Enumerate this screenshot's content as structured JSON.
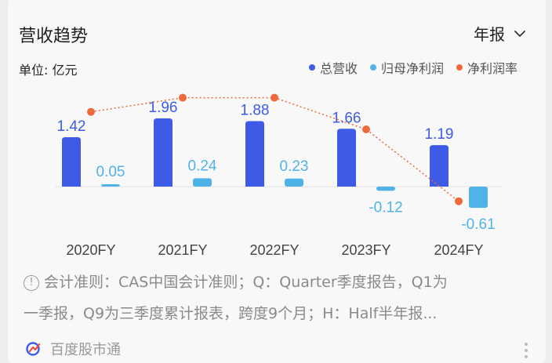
{
  "header": {
    "title": "营收趋势",
    "period": "年报"
  },
  "unit_label": "单位: 亿元",
  "legend": [
    {
      "label": "总营收",
      "color": "#3d5be6"
    },
    {
      "label": "归母净利润",
      "color": "#4fb3e8"
    },
    {
      "label": "净利润率",
      "color": "#ef6a3a"
    }
  ],
  "chart_data": {
    "type": "bar",
    "categories": [
      "2020FY",
      "2021FY",
      "2022FY",
      "2023FY",
      "2024FY"
    ],
    "series": [
      {
        "name": "总营收",
        "values": [
          1.42,
          1.96,
          1.88,
          1.66,
          1.19
        ],
        "labels": [
          "1.42",
          "1.96",
          "1.88",
          "1.66",
          "1.19"
        ],
        "color": "#3d5be6"
      },
      {
        "name": "归母净利润",
        "values": [
          0.05,
          0.24,
          0.23,
          -0.12,
          -0.61
        ],
        "labels": [
          "0.05",
          "0.24",
          "0.23",
          "-0.12",
          "-0.61"
        ],
        "color": "#4fb3e8"
      },
      {
        "name": "净利润率",
        "type": "line",
        "values": [
          3.5,
          12.2,
          12.2,
          -7.2,
          -51.3
        ],
        "color": "#ef6a3a"
      }
    ],
    "ylim": [
      -0.61,
      1.96
    ],
    "grid": false
  },
  "note": {
    "icon": "info-icon",
    "line1": "会计准则：CAS中国会计准则；Q：Quarter季度报告，Q1为",
    "line2": "一季报，Q9为三季度累计报表，跨度9个月；H：Half半年报..."
  },
  "footer": {
    "brand": "百度股市通"
  }
}
